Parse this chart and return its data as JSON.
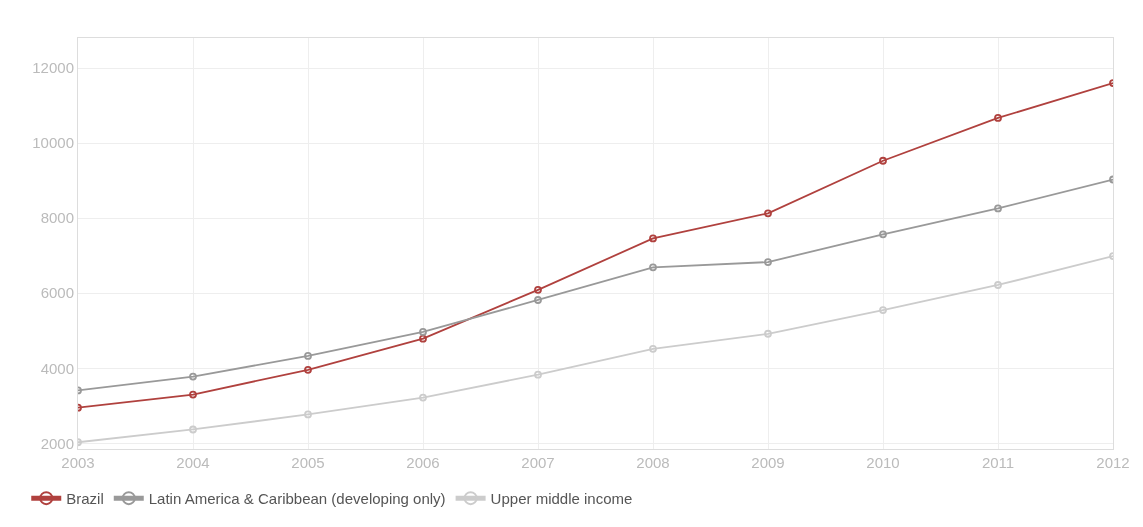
{
  "chart_data": {
    "type": "line",
    "x": [
      2003,
      2004,
      2005,
      2006,
      2007,
      2008,
      2009,
      2010,
      2011,
      2012
    ],
    "series": [
      {
        "name": "Brazil",
        "color": "#b0413e",
        "values": [
          2950,
          3300,
          3960,
          4790,
          6090,
          7460,
          8130,
          9530,
          10670,
          11600
        ]
      },
      {
        "name": "Latin America & Caribbean (developing only)",
        "color": "#999999",
        "values": [
          3410,
          3780,
          4330,
          4970,
          5820,
          6690,
          6830,
          7570,
          8260,
          9030
        ]
      },
      {
        "name": "Upper middle income",
        "color": "#cccccc",
        "values": [
          2030,
          2370,
          2770,
          3220,
          3830,
          4520,
          4920,
          5550,
          6220,
          6990
        ]
      }
    ],
    "xlim": [
      2003,
      2012
    ],
    "xticks": [
      2003,
      2004,
      2005,
      2006,
      2007,
      2008,
      2009,
      2010,
      2011,
      2012
    ],
    "ylim": [
      1850,
      12800
    ],
    "yticks": [
      2000,
      4000,
      6000,
      8000,
      10000,
      12000
    ],
    "grid": true,
    "legend": "bottom left",
    "marker": "circle",
    "line_style": "solid"
  }
}
